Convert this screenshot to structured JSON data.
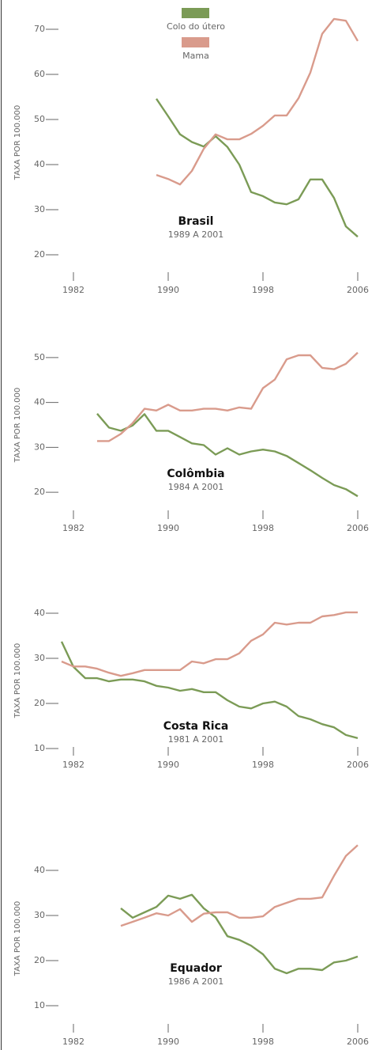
{
  "chart_data": [
    {
      "type": "line",
      "title": "Brasil",
      "subtitle": "1989 A 2001",
      "ylabel": "TAXA POR 100.000",
      "x": [
        1989,
        1990,
        1991,
        1992,
        1993,
        1994,
        1995,
        1996,
        1997,
        1998,
        1999,
        2000,
        2001,
        2002,
        2003,
        2004,
        2005,
        2006
      ],
      "series": [
        {
          "name": "Colo do útero",
          "color": "#7b9b56",
          "values": [
            54.6,
            50.7,
            46.7,
            45,
            44,
            46.3,
            43.9,
            40,
            33.9,
            33,
            31.6,
            31.2,
            32.3,
            36.7,
            36.7,
            32.6,
            26.3,
            24
          ]
        },
        {
          "name": "Mama",
          "color": "#d99b8c",
          "values": [
            37.7,
            36.8,
            35.6,
            38.6,
            43.5,
            46.7,
            45.6,
            45.6,
            46.8,
            48.6,
            50.9,
            50.9,
            54.7,
            60.4,
            69,
            72.3,
            71.9,
            67.4
          ]
        }
      ],
      "xlim": [
        1980,
        2007
      ],
      "xticks": [
        1982,
        1990,
        1998,
        2006
      ],
      "ylim": [
        15,
        75
      ],
      "yticks": [
        20,
        30,
        40,
        50,
        60,
        70
      ]
    },
    {
      "type": "line",
      "title": "Colômbia",
      "subtitle": "1984 A 2001",
      "ylabel": "TAXA POR 100.000",
      "x": [
        1984,
        1985,
        1986,
        1987,
        1988,
        1989,
        1990,
        1991,
        1992,
        1993,
        1994,
        1995,
        1996,
        1997,
        1998,
        1999,
        2000,
        2001,
        2002,
        2003,
        2004,
        2005,
        2006
      ],
      "series": [
        {
          "color": "#7b9b56",
          "values": [
            37.5,
            34.4,
            33.7,
            34.9,
            37.4,
            33.7,
            33.7,
            32.3,
            30.9,
            30.5,
            28.4,
            29.8,
            28.4,
            29.1,
            29.5,
            29.1,
            28.1,
            26.5,
            24.9,
            23.2,
            21.6,
            20.7,
            19.1
          ]
        },
        {
          "color": "#d99b8c",
          "values": [
            31.4,
            31.4,
            33,
            35.4,
            38.6,
            38.2,
            39.5,
            38.2,
            38.2,
            38.6,
            38.6,
            38.2,
            38.9,
            38.6,
            43.2,
            45.1,
            49.6,
            50.5,
            50.5,
            47.7,
            47.4,
            48.6,
            51.1
          ]
        }
      ],
      "xlim": [
        1980,
        2007
      ],
      "xticks": [
        1982,
        1990,
        1998,
        2006
      ],
      "ylim": [
        15,
        55
      ],
      "yticks": [
        20,
        30,
        40,
        50
      ]
    },
    {
      "type": "line",
      "title": "Costa Rica",
      "subtitle": "1981 A 2001",
      "ylabel": "TAXA POR 100.000",
      "x": [
        1981,
        1982,
        1983,
        1984,
        1985,
        1986,
        1987,
        1988,
        1989,
        1990,
        1991,
        1992,
        1993,
        1994,
        1995,
        1996,
        1997,
        1998,
        1999,
        2000,
        2001,
        2002,
        2003,
        2004,
        2005,
        2006
      ],
      "series": [
        {
          "color": "#7b9b56",
          "values": [
            33.7,
            28.1,
            25.6,
            25.6,
            24.9,
            25.3,
            25.3,
            24.9,
            23.9,
            23.5,
            22.8,
            23.2,
            22.5,
            22.5,
            20.7,
            19.3,
            18.9,
            20,
            20.4,
            19.3,
            17.2,
            16.5,
            15.4,
            14.7,
            13,
            12.3
          ]
        },
        {
          "color": "#d99b8c",
          "values": [
            29.3,
            28.2,
            28.2,
            27.7,
            26.8,
            26.1,
            26.7,
            27.4,
            27.4,
            27.4,
            27.4,
            29.3,
            28.9,
            29.8,
            29.8,
            31.1,
            33.9,
            35.3,
            37.9,
            37.5,
            37.9,
            37.9,
            39.3,
            39.6,
            40.2,
            40.2
          ]
        }
      ],
      "xlim": [
        1980,
        2007
      ],
      "xticks": [
        1982,
        1990,
        1998,
        2006
      ],
      "ylim": [
        5,
        45
      ],
      "yticks": [
        10,
        20,
        30,
        40
      ]
    },
    {
      "type": "line",
      "title": "Equador",
      "subtitle": "1986 A 2001",
      "ylabel": "TAXA POR 100.000",
      "x": [
        1986,
        1987,
        1988,
        1989,
        1990,
        1991,
        1992,
        1993,
        1994,
        1995,
        1996,
        1997,
        1998,
        1999,
        2000,
        2001,
        2002,
        2003,
        2004,
        2005,
        2006
      ],
      "series": [
        {
          "color": "#7b9b56",
          "values": [
            31.6,
            29.5,
            30.7,
            31.9,
            34.4,
            33.7,
            34.6,
            31.6,
            29.6,
            25.4,
            24.6,
            23.3,
            21.4,
            18.2,
            17.2,
            18.2,
            18.2,
            17.9,
            19.6,
            20,
            20.9
          ]
        },
        {
          "color": "#d99b8c",
          "values": [
            27.7,
            28.6,
            29.5,
            30.5,
            30,
            31.4,
            28.6,
            30.4,
            30.7,
            30.7,
            29.5,
            29.5,
            29.8,
            31.9,
            32.8,
            33.7,
            33.7,
            34,
            38.8,
            43.2,
            45.6
          ]
        }
      ],
      "xlim": [
        1980,
        2007
      ],
      "xticks": [
        1982,
        1990,
        1998,
        2006
      ],
      "ylim": [
        5,
        50
      ],
      "yticks": [
        10,
        20,
        30,
        40
      ]
    }
  ]
}
